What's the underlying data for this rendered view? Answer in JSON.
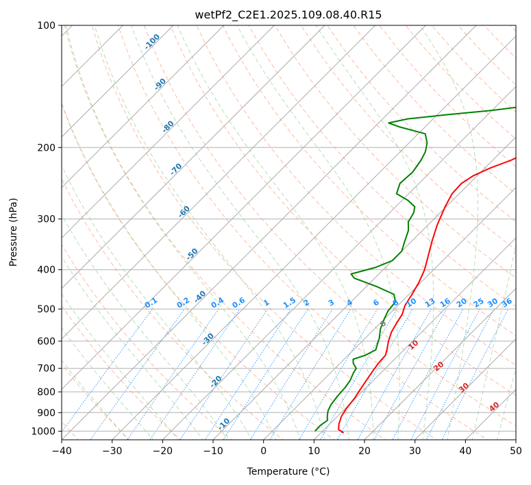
{
  "chart_data": {
    "type": "skew-t",
    "title": "wetPf2_C2E1.2025.109.08.40.R15",
    "xlabel": "Temperature (°C)",
    "ylabel": "Pressure (hPa)",
    "xlim": [
      -40,
      50
    ],
    "ylim": [
      1050,
      100
    ],
    "x_ticks": [
      -40,
      -30,
      -20,
      -10,
      0,
      10,
      20,
      30,
      40,
      50
    ],
    "y_ticks": [
      100,
      200,
      300,
      400,
      500,
      600,
      700,
      800,
      900,
      1000
    ],
    "grid": true,
    "dry_adiabat_labels": [
      "-100",
      "-90",
      "-80",
      "-70",
      "-60",
      "-50",
      "-40",
      "-30",
      "-20",
      "-10"
    ],
    "mixing_ratio_labels": [
      "0.1",
      "0.2",
      "0.4",
      "0.6",
      "1",
      "1.5",
      "2",
      "3",
      "4",
      "6",
      "8",
      "10",
      "13",
      "16",
      "20",
      "25",
      "30",
      "36"
    ],
    "moist_adiabat_labels": [
      "0",
      "10",
      "20",
      "30",
      "40"
    ],
    "series": [
      {
        "name": "Temperature",
        "color": "#ff0000",
        "points": [
          [
            1010,
            14.5
          ],
          [
            990,
            12.8
          ],
          [
            960,
            11.8
          ],
          [
            920,
            10.8
          ],
          [
            880,
            10.2
          ],
          [
            830,
            9.8
          ],
          [
            790,
            9.2
          ],
          [
            750,
            8.6
          ],
          [
            710,
            8.0
          ],
          [
            680,
            7.6
          ],
          [
            650,
            7.4
          ],
          [
            630,
            6.6
          ],
          [
            600,
            5.2
          ],
          [
            570,
            4.0
          ],
          [
            540,
            3.2
          ],
          [
            515,
            2.6
          ],
          [
            490,
            1.4
          ],
          [
            460,
            0.6
          ],
          [
            430,
            -0.4
          ],
          [
            400,
            -1.8
          ],
          [
            370,
            -3.8
          ],
          [
            340,
            -6.0
          ],
          [
            310,
            -8.2
          ],
          [
            280,
            -10.2
          ],
          [
            260,
            -11.4
          ],
          [
            245,
            -11.6
          ],
          [
            235,
            -10.8
          ],
          [
            225,
            -9.0
          ],
          [
            215,
            -6.4
          ],
          [
            205,
            -4.4
          ],
          [
            195,
            -3.6
          ],
          [
            185,
            -3.0
          ],
          [
            175,
            -1.5
          ],
          [
            165,
            0.5
          ],
          [
            155,
            2.5
          ],
          [
            145,
            4.0
          ],
          [
            135,
            5.0
          ],
          [
            125,
            6.0
          ],
          [
            115,
            6.5
          ],
          [
            100,
            6.9
          ]
        ]
      },
      {
        "name": "Dewpoint",
        "color": "#008000",
        "points": [
          [
            1000,
            8.5
          ],
          [
            970,
            8.4
          ],
          [
            940,
            8.8
          ],
          [
            920,
            8.0
          ],
          [
            890,
            7.0
          ],
          [
            860,
            6.4
          ],
          [
            820,
            6.0
          ],
          [
            780,
            5.8
          ],
          [
            750,
            5.4
          ],
          [
            720,
            4.6
          ],
          [
            700,
            4.2
          ],
          [
            680,
            2.6
          ],
          [
            665,
            1.8
          ],
          [
            650,
            3.4
          ],
          [
            630,
            4.4
          ],
          [
            610,
            3.6
          ],
          [
            590,
            2.8
          ],
          [
            560,
            1.2
          ],
          [
            530,
            0.0
          ],
          [
            505,
            -0.9
          ],
          [
            480,
            -1.2
          ],
          [
            460,
            -3.0
          ],
          [
            440,
            -8.0
          ],
          [
            420,
            -14.0
          ],
          [
            410,
            -15.5
          ],
          [
            395,
            -12.0
          ],
          [
            380,
            -10.0
          ],
          [
            360,
            -10.0
          ],
          [
            340,
            -11.4
          ],
          [
            320,
            -12.8
          ],
          [
            305,
            -14.5
          ],
          [
            290,
            -15.2
          ],
          [
            280,
            -16.2
          ],
          [
            270,
            -18.8
          ],
          [
            260,
            -22.4
          ],
          [
            245,
            -23.8
          ],
          [
            230,
            -23.5
          ],
          [
            215,
            -24.2
          ],
          [
            205,
            -25.0
          ],
          [
            195,
            -26.4
          ],
          [
            185,
            -28.6
          ],
          [
            178,
            -35.0
          ],
          [
            174,
            -38.0
          ],
          [
            170,
            -35.0
          ],
          [
            166,
            -28.0
          ],
          [
            162,
            -20.0
          ],
          [
            158,
            -14.0
          ],
          [
            152,
            -12.4
          ],
          [
            144,
            -12.5
          ],
          [
            138,
            -13.2
          ],
          [
            130,
            -13.6
          ],
          [
            120,
            -13.0
          ],
          [
            110,
            -11.4
          ],
          [
            100,
            -10.4
          ]
        ]
      }
    ]
  }
}
